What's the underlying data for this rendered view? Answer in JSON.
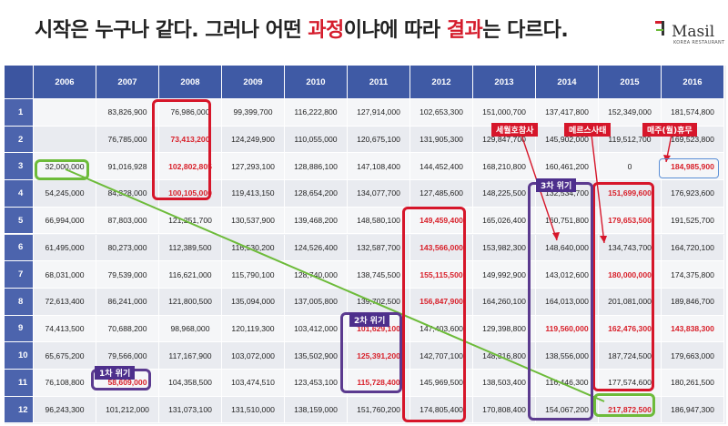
{
  "headline": {
    "part1": "시작은 누구나 같다. 그러나 어떤 ",
    "hl1": "과정",
    "part2": "이냐에 따라 ",
    "hl2": "결과",
    "part3": "는 다르다."
  },
  "logo": {
    "name": "Masil",
    "subtitle": "KOREA RESTAURANT"
  },
  "colors": {
    "header_bg": "#3f5aa5",
    "highlight_red": "#d51c2c",
    "crisis_purple": "#4d2f8c",
    "start_green": "#6dbb3a"
  },
  "table": {
    "columns": [
      "2006",
      "2007",
      "2008",
      "2009",
      "2010",
      "2011",
      "2012",
      "2013",
      "2014",
      "2015",
      "2016"
    ],
    "rows": [
      {
        "label": "1",
        "cells": [
          "",
          "83,826,900",
          "76,986,000",
          "99,399,700",
          "116,222,800",
          "127,914,000",
          "102,653,300",
          "151,000,700",
          "137,417,800",
          "152,349,000",
          "181,574,800"
        ]
      },
      {
        "label": "2",
        "cells": [
          "",
          "76,785,000",
          "73,413,200",
          "124,249,900",
          "110,055,000",
          "120,675,100",
          "131,905,300",
          "129,847,700",
          "145,902,000",
          "119,512,700",
          "169,523,800"
        ]
      },
      {
        "label": "3",
        "cells": [
          "32,000,000",
          "91,016,928",
          "102,802,805",
          "127,293,100",
          "128,886,100",
          "147,108,400",
          "144,452,400",
          "168,210,800",
          "160,461,200",
          "0",
          "184,985,900"
        ]
      },
      {
        "label": "4",
        "cells": [
          "54,245,000",
          "84,328,000",
          "100,105,000",
          "119,413,150",
          "128,654,200",
          "134,077,700",
          "127,485,600",
          "148,225,500",
          "132,534,700",
          "151,699,600",
          "176,923,600"
        ]
      },
      {
        "label": "5",
        "cells": [
          "66,994,000",
          "87,803,000",
          "121,251,700",
          "130,537,900",
          "139,468,200",
          "148,580,100",
          "149,459,400",
          "165,026,400",
          "160,751,800",
          "179,653,500",
          "191,525,700"
        ]
      },
      {
        "label": "6",
        "cells": [
          "61,495,000",
          "80,273,000",
          "112,389,500",
          "116,530,200",
          "124,526,400",
          "132,587,700",
          "143,566,000",
          "153,982,300",
          "148,640,000",
          "134,743,700",
          "164,720,100"
        ]
      },
      {
        "label": "7",
        "cells": [
          "68,031,000",
          "79,539,000",
          "116,621,000",
          "115,790,100",
          "128,740,000",
          "138,745,500",
          "155,115,500",
          "149,992,900",
          "143,012,600",
          "180,000,000",
          "174,375,800"
        ]
      },
      {
        "label": "8",
        "cells": [
          "72,613,400",
          "86,241,000",
          "121,800,500",
          "135,094,000",
          "137,005,800",
          "139,702,500",
          "156,847,900",
          "164,260,100",
          "164,013,000",
          "201,081,000",
          "189,846,700"
        ]
      },
      {
        "label": "9",
        "cells": [
          "74,413,500",
          "70,688,200",
          "98,968,000",
          "120,119,300",
          "103,412,000",
          "101,629,100",
          "147,403,600",
          "129,398,800",
          "119,560,000",
          "162,476,300",
          "143,838,300"
        ]
      },
      {
        "label": "10",
        "cells": [
          "65,675,200",
          "79,566,000",
          "117,167,900",
          "103,072,000",
          "135,502,900",
          "125,391,200",
          "142,707,100",
          "148,316,800",
          "138,556,000",
          "187,724,500",
          "179,663,000"
        ]
      },
      {
        "label": "11",
        "cells": [
          "76,108,800",
          "58,609,000",
          "104,358,500",
          "103,474,510",
          "123,453,100",
          "115,728,400",
          "145,969,500",
          "138,503,400",
          "116,446,300",
          "177,574,600",
          "180,261,500"
        ]
      },
      {
        "label": "12",
        "cells": [
          "96,243,300",
          "101,212,000",
          "131,073,100",
          "131,510,000",
          "138,159,000",
          "151,760,200",
          "174,805,400",
          "170,808,400",
          "154,067,200",
          "217,872,500",
          "186,947,300"
        ]
      }
    ],
    "red_cells": [
      [
        1,
        2
      ],
      [
        2,
        2
      ],
      [
        3,
        2
      ],
      [
        4,
        6
      ],
      [
        5,
        6
      ],
      [
        6,
        6
      ],
      [
        7,
        6
      ],
      [
        8,
        5
      ],
      [
        9,
        5
      ],
      [
        10,
        5
      ],
      [
        10,
        1
      ],
      [
        3,
        9
      ],
      [
        4,
        9
      ],
      [
        6,
        9
      ],
      [
        8,
        8
      ],
      [
        8,
        9
      ],
      [
        8,
        10
      ],
      [
        11,
        9
      ],
      [
        2,
        10
      ]
    ]
  },
  "annotations": {
    "crisis1": "1차 위기",
    "crisis2": "2차 위기",
    "crisis3": "3차 위기",
    "event_sewol": "세월호참사",
    "event_mers": "메르스사태",
    "event_holiday": "매주(월)휴무"
  }
}
